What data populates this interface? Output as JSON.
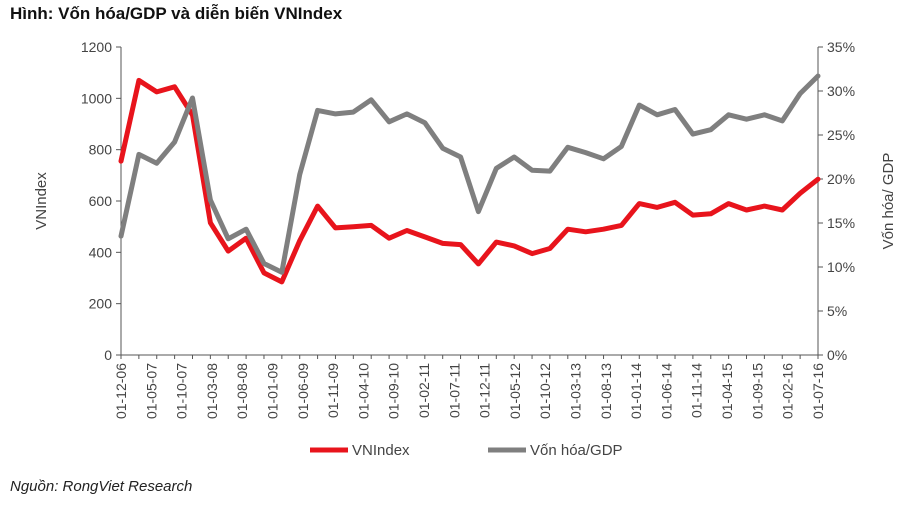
{
  "title": "Hình: Vốn hóa/GDP và diễn biến VNIndex",
  "source": "Nguồn: RongViet Research",
  "chart_data": {
    "type": "line",
    "title": "Hình: Vốn hóa/GDP và diễn biến VNIndex",
    "ylabel": "VNIndex",
    "y2label": "Vốn hóa/ GDP",
    "ylim": [
      0,
      1200
    ],
    "y2lim": [
      0,
      35
    ],
    "yticks": [
      "0",
      "200",
      "400",
      "600",
      "800",
      "1000",
      "1200"
    ],
    "y2ticks": [
      "0%",
      "5%",
      "10%",
      "15%",
      "20%",
      "25%",
      "30%",
      "35%"
    ],
    "xtick_labels": [
      "01-12-06",
      "01-05-07",
      "01-10-07",
      "01-03-08",
      "01-08-08",
      "01-01-09",
      "01-06-09",
      "01-11-09",
      "01-04-10",
      "01-09-10",
      "01-02-11",
      "01-07-11",
      "01-12-11",
      "01-05-12",
      "01-10-12",
      "01-03-13",
      "01-08-13",
      "01-01-14",
      "01-06-14",
      "01-11-14",
      "01-04-15",
      "01-09-15",
      "01-02-16",
      "01-07-16"
    ],
    "grid": false,
    "legend": "bottom",
    "series": [
      {
        "name": "VNIndex",
        "axis": "left",
        "color": "#e8141c",
        "values": [
          755,
          1070,
          1025,
          1045,
          935,
          515,
          405,
          455,
          320,
          285,
          445,
          580,
          495,
          500,
          505,
          455,
          485,
          460,
          435,
          430,
          355,
          440,
          425,
          395,
          415,
          490,
          480,
          490,
          505,
          590,
          575,
          595,
          545,
          550,
          590,
          565,
          580,
          565,
          630,
          685
        ]
      },
      {
        "name": "Vốn hóa/GDP",
        "axis": "right",
        "color": "#7f7f7f",
        "values": [
          13.5,
          22.8,
          21.8,
          24.2,
          29.2,
          17.6,
          13.2,
          14.3,
          10.4,
          9.4,
          20.5,
          27.8,
          27.4,
          27.6,
          29.0,
          26.5,
          27.4,
          26.4,
          23.5,
          22.5,
          16.3,
          21.2,
          22.5,
          21.0,
          20.9,
          23.6,
          23.0,
          22.3,
          23.7,
          28.4,
          27.3,
          27.9,
          25.1,
          25.6,
          27.3,
          26.8,
          27.3,
          26.6,
          29.7,
          31.7
        ]
      }
    ]
  }
}
